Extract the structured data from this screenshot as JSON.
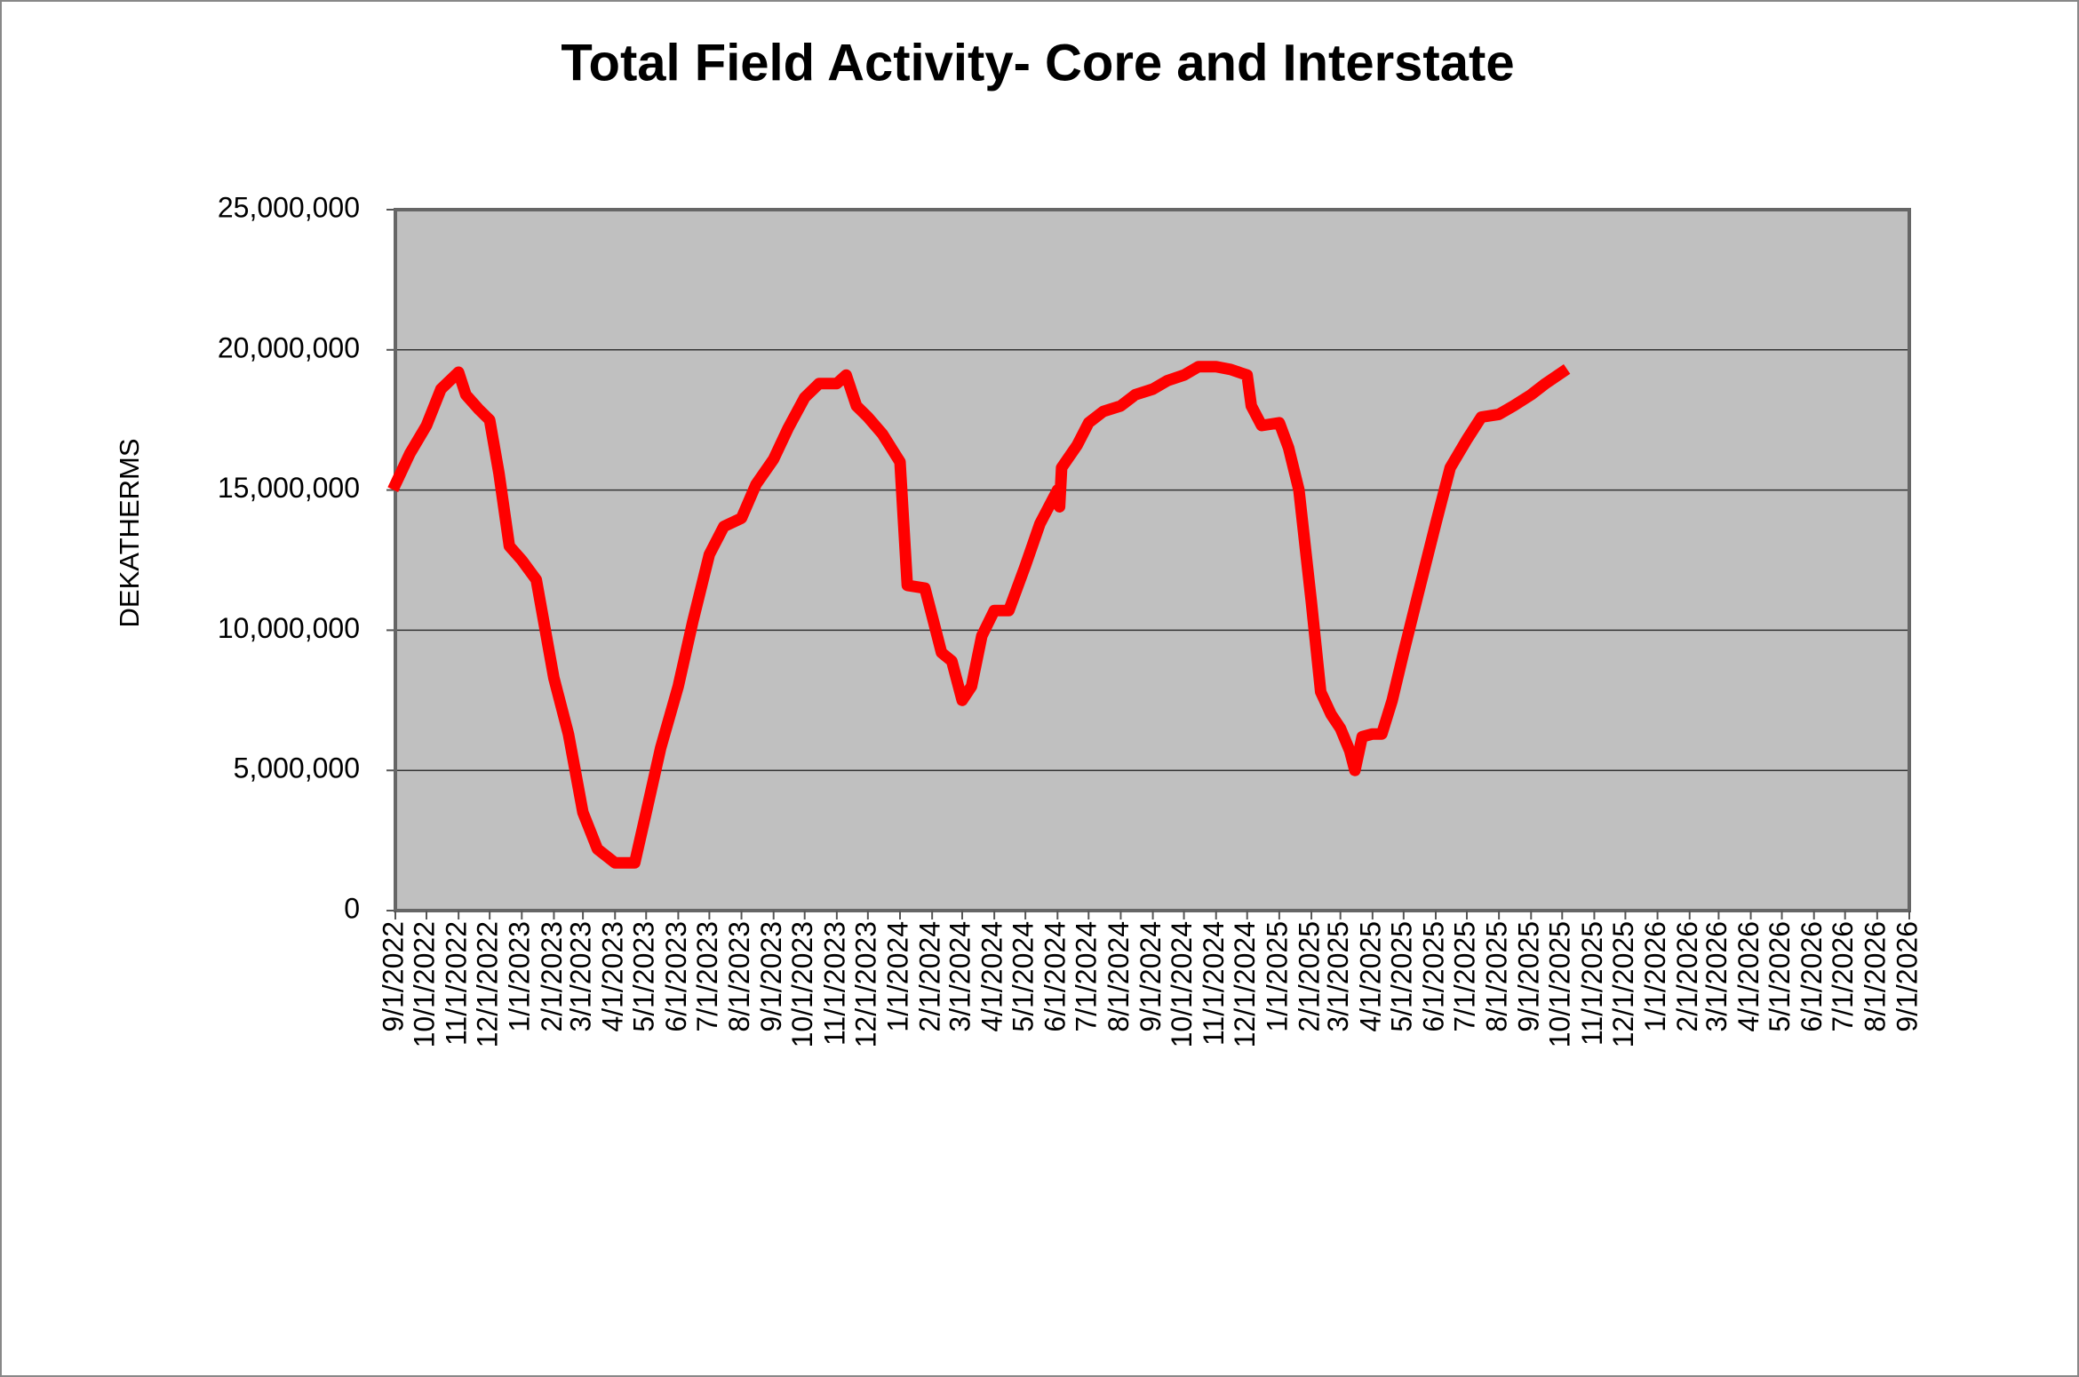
{
  "chart_data": {
    "type": "line",
    "title": "Total Field Activity- Core and Interstate",
    "y_label": "DEKATHERMS",
    "color": "#ff0000",
    "grid": true,
    "ylim": [
      0,
      25000000
    ],
    "yticks": [
      0,
      {
        "value": 5000000,
        "label": "5,000,000"
      },
      {
        "value": 10000000,
        "label": "10,000,000"
      },
      {
        "value": 15000000,
        "label": "15,000,000"
      },
      {
        "value": 20000000,
        "label": "20,000,000"
      },
      {
        "value": 25000000,
        "label": "25,000,000"
      }
    ],
    "xlim": [
      "9/1/2022",
      "9/1/2026"
    ],
    "xticks": [
      "9/1/2022",
      "10/1/2022",
      "11/1/2022",
      "12/1/2022",
      "1/1/2023",
      "2/1/2023",
      "3/1/2023",
      "4/1/2023",
      "5/1/2023",
      "6/1/2023",
      "7/1/2023",
      "8/1/2023",
      "9/1/2023",
      "10/1/2023",
      "11/1/2023",
      "12/1/2023",
      "1/1/2024",
      "2/1/2024",
      "3/1/2024",
      "4/1/2024",
      "5/1/2024",
      "6/1/2024",
      "7/1/2024",
      "8/1/2024",
      "9/1/2024",
      "10/1/2024",
      "11/1/2024",
      "12/1/2024",
      "1/1/2025",
      "2/1/2025",
      "3/1/2025",
      "4/1/2025",
      "5/1/2025",
      "6/1/2025",
      "7/1/2025",
      "8/1/2025",
      "9/1/2025",
      "10/1/2025",
      "11/1/2025",
      "12/1/2025",
      "1/1/2026",
      "2/1/2026",
      "3/1/2026",
      "4/1/2026",
      "5/1/2026",
      "6/1/2026",
      "7/1/2026",
      "8/1/2026",
      "9/1/2026"
    ],
    "x": [
      "9/1/2022",
      "9/15/2022",
      "10/1/2022",
      "10/15/2022",
      "11/1/2022",
      "11/8/2022",
      "11/20/2022",
      "12/1/2022",
      "12/10/2022",
      "12/20/2022",
      "1/1/2023",
      "1/15/2023",
      "2/1/2023",
      "2/15/2023",
      "3/1/2023",
      "3/15/2023",
      "4/1/2023",
      "4/20/2023",
      "5/1/2023",
      "5/15/2023",
      "6/1/2023",
      "6/15/2023",
      "7/1/2023",
      "7/15/2023",
      "8/1/2023",
      "8/15/2023",
      "9/1/2023",
      "9/15/2023",
      "10/1/2023",
      "10/15/2023",
      "11/1/2023",
      "11/10/2023",
      "11/20/2023",
      "12/1/2023",
      "12/15/2023",
      "1/1/2024",
      "1/8/2024",
      "1/25/2024",
      "2/1/2024",
      "2/10/2024",
      "2/20/2024",
      "3/1/2024",
      "3/10/2024",
      "3/20/2024",
      "4/1/2024",
      "4/15/2024",
      "5/1/2024",
      "5/15/2024",
      "6/1/2024",
      "6/3/2024",
      "6/5/2024",
      "6/20/2024",
      "7/1/2024",
      "7/15/2024",
      "8/1/2024",
      "8/15/2024",
      "9/1/2024",
      "9/15/2024",
      "10/1/2024",
      "10/15/2024",
      "11/1/2024",
      "11/15/2024",
      "12/1/2024",
      "12/5/2024",
      "12/15/2024",
      "1/1/2025",
      "1/10/2025",
      "1/20/2025",
      "2/1/2025",
      "2/10/2025",
      "2/20/2025",
      "3/1/2025",
      "3/10/2025",
      "3/15/2025",
      "3/22/2025",
      "4/1/2025",
      "4/10/2025",
      "4/20/2025",
      "5/1/2025",
      "5/15/2025",
      "6/1/2025",
      "6/15/2025",
      "7/1/2025",
      "7/15/2025",
      "8/1/2025",
      "8/15/2025",
      "9/1/2025",
      "9/15/2025",
      "10/1/2025"
    ],
    "values": [
      15200000,
      16300000,
      17300000,
      18600000,
      19200000,
      18400000,
      17900000,
      17500000,
      15600000,
      13000000,
      12500000,
      11800000,
      8300000,
      6300000,
      3500000,
      2200000,
      1700000,
      1700000,
      3500000,
      5800000,
      8000000,
      10300000,
      12700000,
      13700000,
      14000000,
      15200000,
      16100000,
      17200000,
      18300000,
      18800000,
      18800000,
      19100000,
      18000000,
      17600000,
      17000000,
      16000000,
      11600000,
      11500000,
      10500000,
      9200000,
      8900000,
      7500000,
      8000000,
      9800000,
      10700000,
      10700000,
      12300000,
      13800000,
      15000000,
      14400000,
      15800000,
      16600000,
      17400000,
      17800000,
      18000000,
      18400000,
      18600000,
      18900000,
      19100000,
      19400000,
      19400000,
      19300000,
      19100000,
      18000000,
      17300000,
      17400000,
      16500000,
      15000000,
      11000000,
      7800000,
      7000000,
      6500000,
      5700000,
      5000000,
      6200000,
      6300000,
      6300000,
      7500000,
      9200000,
      11300000,
      13800000,
      15800000,
      16800000,
      17600000,
      17700000,
      18000000,
      18400000,
      18800000,
      19200000
    ]
  }
}
